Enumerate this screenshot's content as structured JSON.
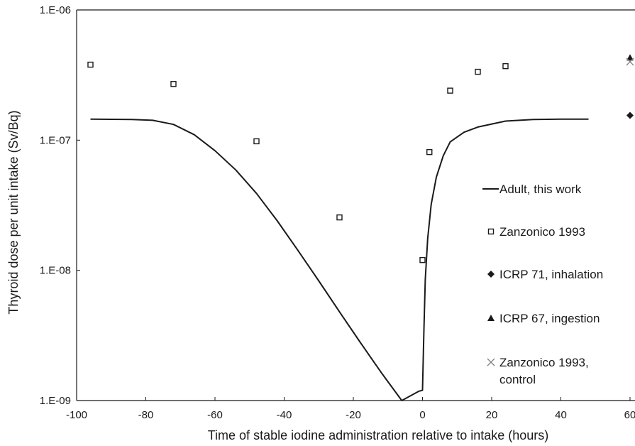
{
  "chart_data": {
    "type": "scatter",
    "title": "",
    "xlabel": "Time of stable iodine administration relative to intake (hours)",
    "ylabel": "Thyroid dose per unit intake (Sv/Bq)",
    "xlim": [
      -100,
      60
    ],
    "ylim": [
      1e-09,
      1e-06
    ],
    "yscale": "log",
    "grid": false,
    "legend_position": "right",
    "x_ticks": [
      -100,
      -80,
      -60,
      -40,
      -20,
      0,
      20,
      40,
      60
    ],
    "x_tick_labels": [
      "-100",
      "-80",
      "-60",
      "-40",
      "-20",
      "0",
      "20",
      "40",
      "60"
    ],
    "y_ticks": [
      1e-09,
      1e-08,
      1e-07,
      1e-06
    ],
    "y_tick_labels": [
      "1.E-09",
      "1.E-08",
      "1.E-07",
      "1.E-06"
    ],
    "series": [
      {
        "name": "Adult, this work",
        "kind": "line",
        "color": "#1a1a1a",
        "x": [
          -96,
          -84,
          -78,
          -72,
          -66,
          -60,
          -54,
          -48,
          -42,
          -36,
          -30,
          -24,
          -18,
          -12,
          -6,
          -1,
          0,
          0.4,
          0.8,
          1.5,
          2.5,
          4,
          6,
          8,
          12,
          16,
          24,
          32,
          40,
          48
        ],
        "y": [
          1.45e-07,
          1.44e-07,
          1.42e-07,
          1.32e-07,
          1.1e-07,
          8.3e-08,
          5.9e-08,
          3.9e-08,
          2.4e-08,
          1.42e-08,
          8.3e-09,
          4.8e-09,
          2.8e-09,
          1.65e-09,
          1e-09,
          1.18e-09,
          1.2e-09,
          3.5e-09,
          8.5e-09,
          1.75e-08,
          3.2e-08,
          5.2e-08,
          7.6e-08,
          9.7e-08,
          1.15e-07,
          1.26e-07,
          1.4e-07,
          1.44e-07,
          1.45e-07,
          1.45e-07
        ]
      },
      {
        "name": "Zanzonico 1993",
        "kind": "open-square",
        "color": "#1a1a1a",
        "x": [
          -96,
          -72,
          -48,
          -24,
          0,
          2,
          8,
          16,
          24
        ],
        "y": [
          3.8e-07,
          2.7e-07,
          9.8e-08,
          2.55e-08,
          1.2e-08,
          8.1e-08,
          2.4e-07,
          3.35e-07,
          3.7e-07
        ]
      },
      {
        "name": "ICRP 71, inhalation",
        "kind": "filled-diamond",
        "color": "#1a1a1a",
        "x": [
          60
        ],
        "y": [
          1.55e-07
        ]
      },
      {
        "name": "ICRP 67, ingestion",
        "kind": "filled-triangle",
        "color": "#1a1a1a",
        "x": [
          60
        ],
        "y": [
          4.3e-07
        ]
      },
      {
        "name": "Zanzonico 1993, control",
        "kind": "x-cross",
        "color": "#7f7f7f",
        "x": [
          60
        ],
        "y": [
          4e-07
        ]
      }
    ],
    "legend": [
      {
        "label_lines": [
          "Adult, this work"
        ]
      },
      {
        "label_lines": [
          "Zanzonico 1993"
        ]
      },
      {
        "label_lines": [
          "ICRP 71, inhalation"
        ]
      },
      {
        "label_lines": [
          "ICRP 67, ingestion"
        ]
      },
      {
        "label_lines": [
          "Zanzonico 1993,",
          "control"
        ]
      }
    ]
  }
}
